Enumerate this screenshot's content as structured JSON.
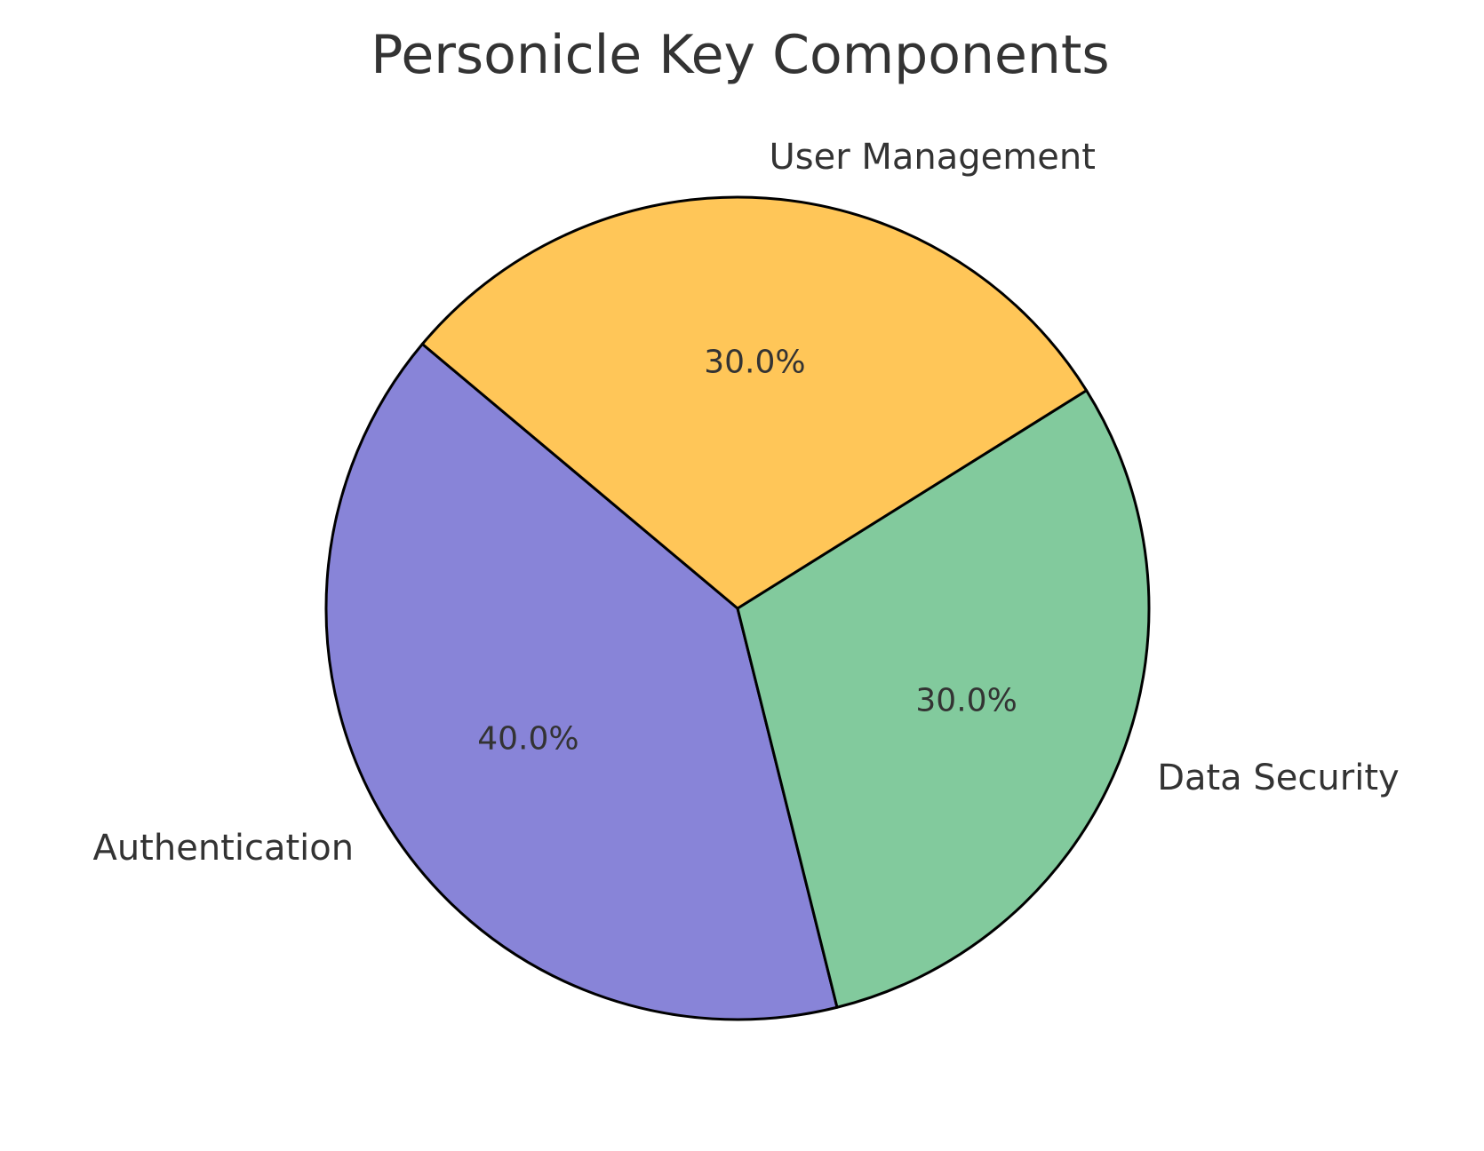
{
  "chart_data": {
    "type": "pie",
    "title": "Personicle Key Components",
    "categories": [
      "Authentication",
      "Data Security",
      "User Management"
    ],
    "values": [
      40,
      30,
      30
    ],
    "percent_labels": [
      "40.0%",
      "30.0%",
      "30.0%"
    ],
    "colors": [
      "#8884d8",
      "#82ca9d",
      "#ffc658"
    ],
    "edge_color": "#000000",
    "start_angle_deg": 140,
    "direction": "counterclockwise",
    "legend": "none"
  }
}
